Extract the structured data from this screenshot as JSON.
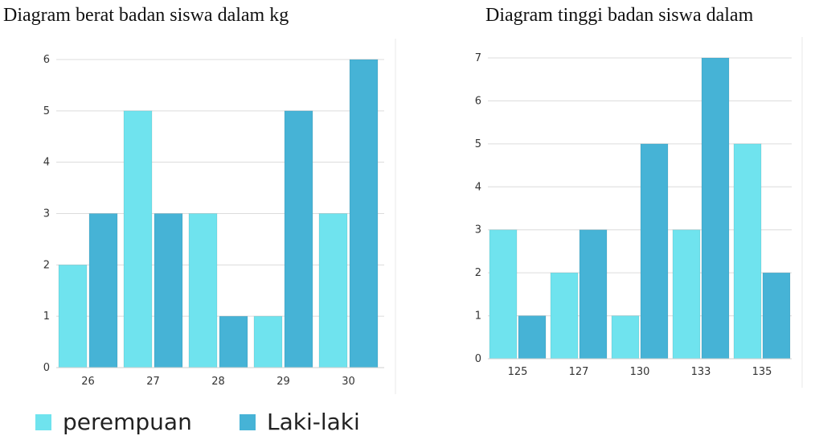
{
  "colors": {
    "perempuan": "#6fe3ee",
    "laki": "#46b3d6",
    "grid": "#dcdcdc"
  },
  "legend": {
    "perempuan": "perempuan",
    "laki": "Laki-laki"
  },
  "chart_data": [
    {
      "type": "bar",
      "title": "Diagram berat badan siswa dalam kg",
      "categories": [
        "26",
        "27",
        "28",
        "29",
        "30"
      ],
      "ylim": [
        0,
        6
      ],
      "yticks": [
        "0",
        "1",
        "2",
        "3",
        "4",
        "5",
        "6"
      ],
      "grid": true,
      "series": [
        {
          "name": "perempuan",
          "values": [
            2,
            5,
            3,
            1,
            3
          ]
        },
        {
          "name": "Laki-laki",
          "values": [
            3,
            3,
            1,
            5,
            6
          ]
        }
      ]
    },
    {
      "type": "bar",
      "title": "Diagram tinggi badan siswa dalam",
      "categories": [
        "125",
        "127",
        "130",
        "133",
        "135"
      ],
      "ylim": [
        0,
        7
      ],
      "yticks": [
        "0",
        "1",
        "2",
        "3",
        "4",
        "5",
        "6",
        "7"
      ],
      "grid": true,
      "series": [
        {
          "name": "perempuan",
          "values": [
            3,
            2,
            1,
            3,
            5
          ]
        },
        {
          "name": "Laki-laki",
          "values": [
            1,
            3,
            5,
            7,
            2
          ]
        }
      ]
    }
  ]
}
